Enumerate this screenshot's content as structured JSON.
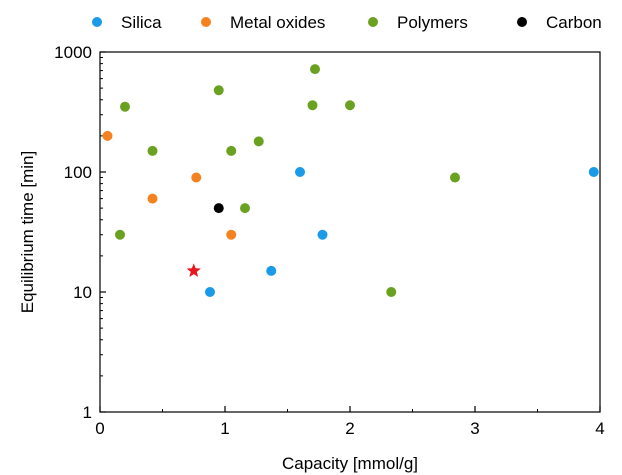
{
  "chart_data": {
    "type": "scatter",
    "xlabel": "Capacity [mmol/g]",
    "ylabel": "Equilibrium time [min]",
    "xlim": [
      0,
      4
    ],
    "ylim": [
      1,
      1000
    ],
    "y_scale": "log",
    "x_ticks": [
      "0",
      "1",
      "2",
      "3",
      "4"
    ],
    "y_ticks": [
      "1",
      "10",
      "100",
      "1000"
    ],
    "grid": false,
    "legend_position": "top",
    "series": [
      {
        "name": "Silica",
        "color": "#1a9be8",
        "marker": "circle",
        "points": [
          [
            0.88,
            10
          ],
          [
            1.37,
            15
          ],
          [
            1.6,
            100
          ],
          [
            1.78,
            30
          ],
          [
            3.95,
            100
          ]
        ]
      },
      {
        "name": "Metal oxides",
        "color": "#f5821f",
        "marker": "circle",
        "points": [
          [
            0.06,
            200
          ],
          [
            0.42,
            60
          ],
          [
            0.77,
            90
          ],
          [
            1.05,
            30
          ]
        ]
      },
      {
        "name": "Polymers",
        "color": "#6aa121",
        "marker": "circle",
        "points": [
          [
            0.16,
            30
          ],
          [
            0.2,
            350
          ],
          [
            0.42,
            150
          ],
          [
            0.95,
            480
          ],
          [
            1.05,
            150
          ],
          [
            1.16,
            50
          ],
          [
            1.27,
            180
          ],
          [
            1.7,
            360
          ],
          [
            1.72,
            720
          ],
          [
            2.0,
            360
          ],
          [
            2.33,
            10
          ],
          [
            2.84,
            90
          ]
        ]
      },
      {
        "name": "Carbon",
        "color": "#000000",
        "marker": "circle",
        "points": [
          [
            0.95,
            50
          ]
        ]
      },
      {
        "name": "",
        "color": "#e8141e",
        "marker": "star",
        "points": [
          [
            0.75,
            15
          ]
        ]
      }
    ]
  }
}
